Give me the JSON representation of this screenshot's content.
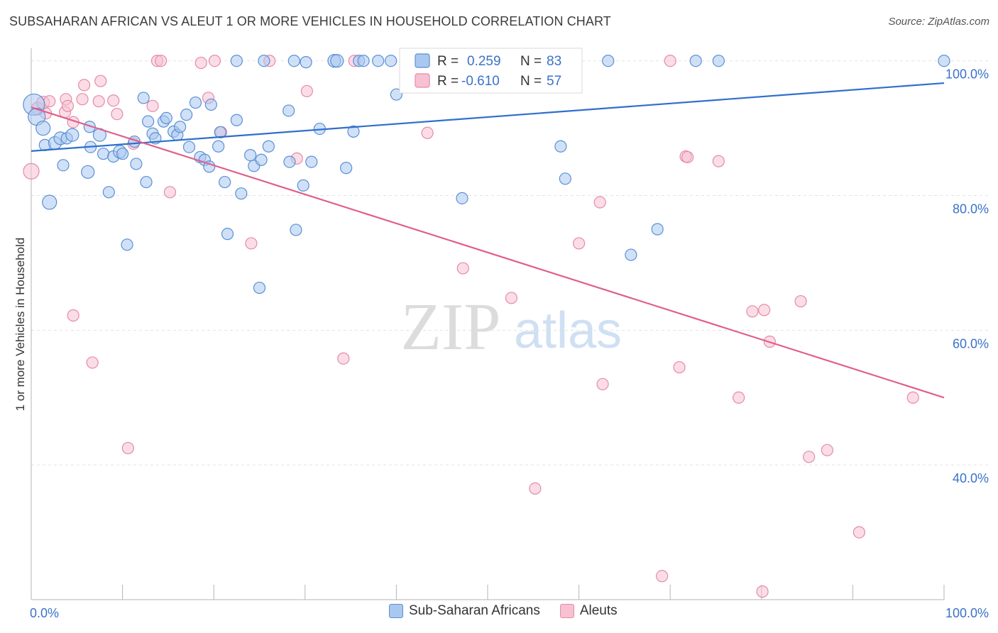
{
  "title": "SUBSAHARAN AFRICAN VS ALEUT 1 OR MORE VEHICLES IN HOUSEHOLD CORRELATION CHART",
  "source": "Source: ZipAtlas.com",
  "watermark": {
    "zip": "ZIP",
    "atlas": "atlas"
  },
  "colors": {
    "blue_fill": "#a9c8f0",
    "blue_stroke": "#5b8fd6",
    "blue_line": "#2f6fcc",
    "pink_fill": "#f7c1d2",
    "pink_stroke": "#e68aa8",
    "pink_line": "#e0608c",
    "value_text": "#3a72c8"
  },
  "legend_top": {
    "r_label": "R =",
    "n_label": "N =",
    "rows": [
      {
        "r": "0.259",
        "n": "83"
      },
      {
        "r": "-0.610",
        "n": "57"
      }
    ]
  },
  "chart_data": {
    "type": "scatter",
    "title": "SUBSAHARAN AFRICAN VS ALEUT 1 OR MORE VEHICLES IN HOUSEHOLD CORRELATION CHART",
    "xlabel": "",
    "ylabel": "1 or more Vehicles in Household",
    "xlim": [
      0,
      100
    ],
    "ylim": [
      20,
      102.5
    ],
    "x_tick_labels": [
      "0.0%",
      "100.0%"
    ],
    "y_tick_values": [
      40,
      60,
      80,
      100
    ],
    "y_tick_labels": [
      "40.0%",
      "60.0%",
      "80.0%",
      "100.0%"
    ],
    "grid": true,
    "legend_placement": "bottom-center",
    "series": [
      {
        "name": "Sub-Saharan Africans",
        "trend": {
          "x": [
            0,
            100
          ],
          "y": [
            86.6,
            96.7
          ]
        },
        "points": [
          [
            0.3,
            93.5,
            15
          ],
          [
            0.6,
            91.7,
            12
          ],
          [
            1.3,
            90.0,
            10
          ],
          [
            1.5,
            87.5,
            8
          ],
          [
            2.0,
            79.0,
            10
          ],
          [
            2.6,
            87.8,
            9
          ],
          [
            3.2,
            88.5,
            9
          ],
          [
            3.9,
            88.5,
            8
          ],
          [
            4.5,
            89.0,
            9
          ],
          [
            3.5,
            84.5,
            8
          ],
          [
            6.4,
            90.2,
            8
          ],
          [
            7.5,
            89.0,
            9
          ],
          [
            6.5,
            87.2,
            8
          ],
          [
            6.2,
            83.5,
            9
          ],
          [
            7.9,
            86.2,
            8
          ],
          [
            9.0,
            85.8,
            8
          ],
          [
            9.7,
            86.5,
            9
          ],
          [
            10.0,
            86.2,
            8
          ],
          [
            8.5,
            80.5,
            8
          ],
          [
            10.5,
            72.7,
            8
          ],
          [
            11.3,
            88.0,
            8
          ],
          [
            11.5,
            84.7,
            8
          ],
          [
            12.3,
            94.5,
            8
          ],
          [
            12.6,
            82.0,
            8
          ],
          [
            12.8,
            91.0,
            8
          ],
          [
            13.3,
            89.2,
            8
          ],
          [
            13.6,
            88.5,
            8
          ],
          [
            14.5,
            91.0,
            8
          ],
          [
            14.8,
            91.5,
            8
          ],
          [
            15.6,
            89.5,
            8
          ],
          [
            16.0,
            89.0,
            8
          ],
          [
            16.3,
            90.2,
            8
          ],
          [
            17.0,
            92.0,
            8
          ],
          [
            17.3,
            87.2,
            8
          ],
          [
            18.0,
            93.8,
            8
          ],
          [
            18.5,
            85.7,
            8
          ],
          [
            19.0,
            85.3,
            8
          ],
          [
            19.5,
            84.3,
            8
          ],
          [
            19.7,
            93.5,
            8
          ],
          [
            20.5,
            87.3,
            8
          ],
          [
            20.7,
            89.4,
            8
          ],
          [
            21.2,
            82.0,
            8
          ],
          [
            21.5,
            74.3,
            8
          ],
          [
            22.5,
            91.2,
            8
          ],
          [
            23.0,
            80.3,
            8
          ],
          [
            24.0,
            86.0,
            8
          ],
          [
            24.4,
            84.4,
            8
          ],
          [
            25.2,
            85.3,
            8
          ],
          [
            25.0,
            66.3,
            8
          ],
          [
            26.0,
            87.3,
            8
          ],
          [
            28.2,
            92.6,
            8
          ],
          [
            28.3,
            85.0,
            8
          ],
          [
            29.0,
            74.9,
            8
          ],
          [
            30.1,
            99.8,
            8
          ],
          [
            30.7,
            85.0,
            8
          ],
          [
            29.8,
            81.5,
            8
          ],
          [
            31.6,
            89.9,
            8
          ],
          [
            34.5,
            84.1,
            8
          ],
          [
            33.2,
            100.0,
            9
          ],
          [
            33.5,
            100.0,
            9
          ],
          [
            35.3,
            89.5,
            8
          ],
          [
            35.9,
            100.0,
            8
          ],
          [
            36.4,
            100.0,
            8
          ],
          [
            38.0,
            100.0,
            8
          ],
          [
            39.4,
            100.0,
            8
          ],
          [
            40.0,
            95.0,
            8
          ],
          [
            42.2,
            100.0,
            8
          ],
          [
            46.2,
            100.0,
            8
          ],
          [
            47.2,
            79.6,
            8
          ],
          [
            50.2,
            100.0,
            8
          ],
          [
            55.6,
            100.0,
            8
          ],
          [
            55.9,
            100.0,
            8
          ],
          [
            58.0,
            87.3,
            8
          ],
          [
            58.5,
            82.5,
            8
          ],
          [
            63.2,
            100.0,
            8
          ],
          [
            65.7,
            71.2,
            8
          ],
          [
            68.6,
            75.0,
            8
          ],
          [
            72.8,
            100.0,
            8
          ],
          [
            75.3,
            100.0,
            8
          ],
          [
            100.0,
            100.0,
            8
          ],
          [
            22.5,
            100.0,
            8
          ],
          [
            25.5,
            100.0,
            8
          ],
          [
            28.8,
            100.0,
            8
          ]
        ]
      },
      {
        "name": "Aleuts",
        "trend": {
          "x": [
            0,
            100
          ],
          "y": [
            93.1,
            50.0
          ]
        },
        "points": [
          [
            0.0,
            83.6,
            11
          ],
          [
            0.7,
            92.9,
            9
          ],
          [
            1.3,
            93.8,
            9
          ],
          [
            2.0,
            94.0,
            8
          ],
          [
            3.7,
            92.4,
            8
          ],
          [
            3.8,
            94.3,
            8
          ],
          [
            4.6,
            90.9,
            8
          ],
          [
            4.6,
            62.2,
            8
          ],
          [
            5.8,
            96.4,
            8
          ],
          [
            5.6,
            94.3,
            8
          ],
          [
            6.7,
            55.2,
            8
          ],
          [
            7.4,
            94.0,
            8
          ],
          [
            7.6,
            97.0,
            8
          ],
          [
            9.0,
            94.1,
            8
          ],
          [
            9.4,
            92.1,
            8
          ],
          [
            10.6,
            42.5,
            8
          ],
          [
            11.2,
            87.7,
            8
          ],
          [
            13.3,
            93.3,
            8
          ],
          [
            13.8,
            100.0,
            8
          ],
          [
            14.2,
            100.0,
            8
          ],
          [
            15.2,
            80.5,
            8
          ],
          [
            18.6,
            99.7,
            8
          ],
          [
            19.4,
            94.5,
            8
          ],
          [
            20.1,
            100.0,
            8
          ],
          [
            20.8,
            89.4,
            8
          ],
          [
            24.1,
            72.9,
            8
          ],
          [
            26.1,
            100.0,
            8
          ],
          [
            29.1,
            85.5,
            8
          ],
          [
            30.2,
            95.5,
            8
          ],
          [
            34.2,
            55.8,
            8
          ],
          [
            35.4,
            100.0,
            8
          ],
          [
            43.4,
            89.3,
            8
          ],
          [
            47.3,
            69.2,
            8
          ],
          [
            52.6,
            64.8,
            8
          ],
          [
            55.2,
            36.5,
            8
          ],
          [
            56.2,
            100.0,
            8
          ],
          [
            60.0,
            72.9,
            8
          ],
          [
            62.3,
            79.0,
            8
          ],
          [
            62.6,
            52.0,
            8
          ],
          [
            69.1,
            23.5,
            8
          ],
          [
            70.0,
            100.0,
            8
          ],
          [
            71.0,
            54.5,
            8
          ],
          [
            71.7,
            85.8,
            8
          ],
          [
            71.9,
            85.7,
            8
          ],
          [
            75.3,
            85.1,
            8
          ],
          [
            77.5,
            50.0,
            8
          ],
          [
            79.0,
            62.8,
            8
          ],
          [
            80.1,
            21.2,
            8
          ],
          [
            80.3,
            63.0,
            8
          ],
          [
            80.9,
            58.3,
            8
          ],
          [
            84.3,
            64.3,
            8
          ],
          [
            85.2,
            41.2,
            8
          ],
          [
            87.2,
            42.2,
            8
          ],
          [
            90.7,
            30.0,
            8
          ],
          [
            96.6,
            50.0,
            8
          ],
          [
            1.6,
            92.2,
            8
          ],
          [
            4.0,
            93.3,
            8
          ]
        ]
      }
    ]
  }
}
